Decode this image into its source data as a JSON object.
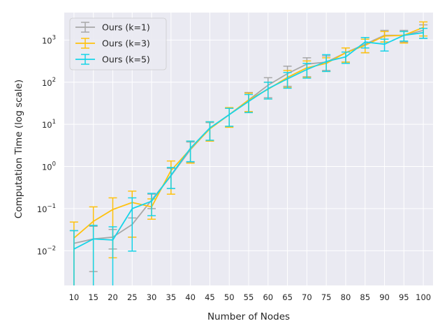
{
  "chart_data": {
    "type": "line",
    "xlabel": "Number of Nodes",
    "ylabel": "Computation Time (log scale)",
    "x": [
      10,
      15,
      20,
      25,
      30,
      35,
      40,
      45,
      50,
      55,
      60,
      65,
      70,
      75,
      80,
      85,
      90,
      95,
      100
    ],
    "yscale": "log",
    "ylim": [
      0.0015,
      4500
    ],
    "yticks": [
      {
        "value": 0.01,
        "base": "10",
        "exp": "−2"
      },
      {
        "value": 0.1,
        "base": "10",
        "exp": "−1"
      },
      {
        "value": 1,
        "base": "10",
        "exp": "0"
      },
      {
        "value": 10,
        "base": "10",
        "exp": "1"
      },
      {
        "value": 100,
        "base": "10",
        "exp": "2"
      },
      {
        "value": 1000,
        "base": "10",
        "exp": "3"
      }
    ],
    "grid": true,
    "legend_position": "top-left",
    "series": [
      {
        "name": "Ours (k=1)",
        "color": "#a8a8a8",
        "values": [
          0.015,
          0.019,
          0.021,
          0.042,
          0.16,
          0.6,
          2.5,
          8.0,
          17,
          38,
          85,
          160,
          270,
          300,
          500,
          800,
          1300,
          1300,
          1700
        ],
        "err_low": [
          0.0015,
          0.0032,
          0.011,
          0.021,
          0.1,
          0.3,
          1.25,
          4.0,
          8.8,
          20,
          43,
          80,
          135,
          190,
          300,
          500,
          900,
          900,
          1100
        ],
        "err_high": [
          0.03,
          0.038,
          0.032,
          0.06,
          0.22,
          0.9,
          3.8,
          11,
          24,
          57,
          128,
          240,
          380,
          420,
          650,
          1150,
          1700,
          1700,
          2300
        ]
      },
      {
        "name": "Ours (k=3)",
        "color": "#ffc20e",
        "values": [
          0.02,
          0.05,
          0.095,
          0.14,
          0.11,
          0.8,
          2.6,
          7.8,
          17,
          38,
          68,
          130,
          220,
          280,
          500,
          750,
          1250,
          1300,
          2000
        ],
        "err_low": [
          0.0015,
          0.0015,
          0.0068,
          0.021,
          0.056,
          0.22,
          1.2,
          4.0,
          8.5,
          20,
          40,
          75,
          130,
          180,
          300,
          500,
          900,
          850,
          1250
        ],
        "err_high": [
          0.048,
          0.11,
          0.18,
          0.26,
          0.17,
          1.35,
          4.0,
          11.5,
          25,
          55,
          100,
          190,
          320,
          380,
          650,
          1050,
          1600,
          1600,
          2700
        ]
      },
      {
        "name": "Ours (k=5)",
        "color": "#17d4e8",
        "values": [
          0.011,
          0.019,
          0.018,
          0.1,
          0.15,
          0.62,
          2.7,
          8.2,
          17,
          35,
          70,
          120,
          200,
          310,
          400,
          900,
          800,
          1300,
          1500
        ],
        "err_low": [
          0.0015,
          0.0015,
          0.0015,
          0.0098,
          0.068,
          0.3,
          1.3,
          4.2,
          9.0,
          19,
          40,
          72,
          125,
          180,
          280,
          650,
          550,
          950,
          1100
        ],
        "err_high": [
          0.03,
          0.04,
          0.037,
          0.18,
          0.23,
          0.95,
          4.0,
          11.5,
          24,
          51,
          100,
          170,
          280,
          450,
          520,
          1150,
          1050,
          1600,
          1900
        ]
      }
    ]
  }
}
